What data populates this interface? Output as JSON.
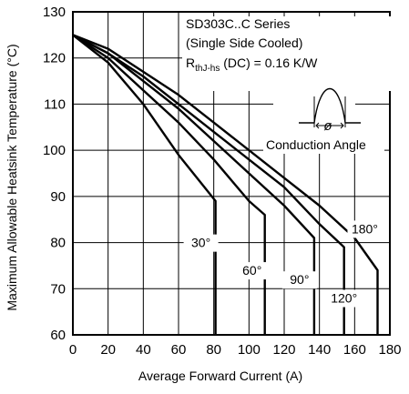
{
  "chart_data": {
    "type": "line",
    "xlabel": "Average Forward Current (A)",
    "ylabel": "Maximum Allowable Heatsink Temperature (°C)",
    "xlim": [
      0,
      180
    ],
    "ylim": [
      60,
      130
    ],
    "x_ticks": [
      0,
      20,
      40,
      60,
      80,
      100,
      120,
      140,
      160,
      180
    ],
    "y_ticks": [
      60,
      70,
      80,
      90,
      100,
      110,
      120,
      130
    ],
    "grid": true,
    "annotations": {
      "line1": "SD303C..C Series",
      "line2": "(Single Side Cooled)",
      "rth_main": "R",
      "rth_sub": "thJ-hs",
      "rth_rest": " (DC) = 0.16 K/W",
      "inset_label": "Conduction Angle"
    },
    "series": [
      {
        "name": "30°",
        "x": [
          0,
          20,
          40,
          60,
          81,
          81
        ],
        "y": [
          125,
          119,
          110,
          99,
          89,
          60
        ]
      },
      {
        "name": "60°",
        "x": [
          0,
          20,
          40,
          60,
          80,
          100,
          109,
          109
        ],
        "y": [
          125,
          120,
          113,
          106,
          98,
          89,
          86,
          60
        ]
      },
      {
        "name": "90°",
        "x": [
          0,
          20,
          40,
          60,
          80,
          100,
          120,
          137,
          137
        ],
        "y": [
          125,
          121,
          115,
          109,
          102,
          95,
          88,
          81,
          60
        ]
      },
      {
        "name": "120°",
        "x": [
          0,
          20,
          40,
          60,
          80,
          100,
          120,
          140,
          154,
          154
        ],
        "y": [
          125,
          121,
          116,
          110,
          104,
          98,
          92,
          84,
          79,
          60
        ]
      },
      {
        "name": "180°",
        "x": [
          0,
          20,
          40,
          60,
          80,
          100,
          120,
          140,
          160,
          173,
          173
        ],
        "y": [
          125,
          122,
          117,
          112,
          106,
          100,
          94,
          88,
          81,
          74,
          60
        ]
      }
    ]
  }
}
